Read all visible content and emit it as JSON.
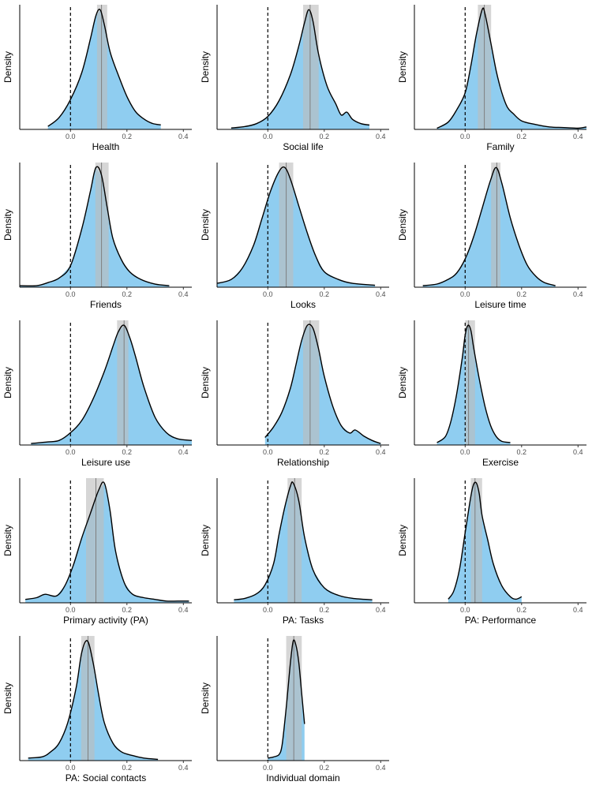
{
  "chart_data": {
    "type": "area",
    "title": "",
    "ylabel": "Density",
    "xlim": [
      -0.18,
      0.43
    ],
    "xticks": [
      0.0,
      0.2,
      0.4
    ],
    "xtick_labels": [
      "0.0",
      "0.2",
      "0.4"
    ],
    "reference_line_x": 0.0,
    "colors": {
      "fill": "#8fcdf0",
      "curve": "#000000",
      "interval": "#bdbdbd",
      "median_line": "#7f7f7f",
      "axis": "#000000"
    },
    "panels": [
      {
        "label": "Health",
        "median": 0.11,
        "interval": [
          0.094,
          0.13
        ],
        "x": [
          -0.08,
          -0.04,
          0.0,
          0.04,
          0.07,
          0.09,
          0.105,
          0.12,
          0.14,
          0.17,
          0.2,
          0.23,
          0.26,
          0.29,
          0.32
        ],
        "y": [
          0.02,
          0.08,
          0.2,
          0.38,
          0.6,
          0.76,
          0.8,
          0.7,
          0.52,
          0.36,
          0.22,
          0.12,
          0.07,
          0.04,
          0.03
        ]
      },
      {
        "label": "Social life",
        "median": 0.15,
        "interval": [
          0.125,
          0.18
        ],
        "x": [
          -0.13,
          -0.08,
          -0.04,
          0.0,
          0.04,
          0.08,
          0.11,
          0.13,
          0.145,
          0.16,
          0.18,
          0.21,
          0.24,
          0.26,
          0.28,
          0.3,
          0.33,
          0.36
        ],
        "y": [
          0.01,
          0.02,
          0.04,
          0.09,
          0.2,
          0.38,
          0.58,
          0.74,
          0.83,
          0.75,
          0.52,
          0.3,
          0.18,
          0.1,
          0.12,
          0.07,
          0.04,
          0.03
        ]
      },
      {
        "label": "Family",
        "median": 0.068,
        "interval": [
          0.045,
          0.092
        ],
        "x": [
          -0.1,
          -0.06,
          -0.03,
          0.0,
          0.02,
          0.04,
          0.06,
          0.07,
          0.09,
          0.11,
          0.13,
          0.15,
          0.17,
          0.2,
          0.25,
          0.3,
          0.35,
          0.4,
          0.43
        ],
        "y": [
          0.01,
          0.06,
          0.16,
          0.3,
          0.52,
          0.78,
          0.98,
          0.95,
          0.72,
          0.48,
          0.3,
          0.18,
          0.13,
          0.07,
          0.04,
          0.02,
          0.015,
          0.01,
          0.02
        ]
      },
      {
        "label": "Friends",
        "median": 0.11,
        "interval": [
          0.088,
          0.135
        ],
        "x": [
          -0.18,
          -0.12,
          -0.08,
          -0.04,
          0.0,
          0.04,
          0.07,
          0.09,
          0.11,
          0.13,
          0.15,
          0.18,
          0.21,
          0.25,
          0.3,
          0.35
        ],
        "y": [
          0.01,
          0.01,
          0.03,
          0.06,
          0.14,
          0.38,
          0.62,
          0.78,
          0.73,
          0.52,
          0.32,
          0.18,
          0.1,
          0.05,
          0.02,
          0.01
        ]
      },
      {
        "label": "Looks",
        "median": 0.065,
        "interval": [
          0.04,
          0.09
        ],
        "x": [
          -0.18,
          -0.13,
          -0.09,
          -0.05,
          -0.02,
          0.01,
          0.04,
          0.06,
          0.08,
          0.11,
          0.14,
          0.17,
          0.2,
          0.25,
          0.3,
          0.38
        ],
        "y": [
          0.02,
          0.04,
          0.1,
          0.22,
          0.36,
          0.5,
          0.6,
          0.62,
          0.56,
          0.42,
          0.28,
          0.16,
          0.08,
          0.04,
          0.02,
          0.01
        ]
      },
      {
        "label": "Leisure time",
        "median": 0.112,
        "interval": [
          0.092,
          0.125
        ],
        "x": [
          -0.15,
          -0.1,
          -0.06,
          -0.03,
          0.0,
          0.03,
          0.06,
          0.09,
          0.11,
          0.13,
          0.16,
          0.19,
          0.22,
          0.25,
          0.28,
          0.32
        ],
        "y": [
          0.01,
          0.02,
          0.05,
          0.09,
          0.18,
          0.32,
          0.5,
          0.68,
          0.76,
          0.66,
          0.44,
          0.27,
          0.14,
          0.07,
          0.03,
          0.01
        ]
      },
      {
        "label": "Leisure use",
        "median": 0.19,
        "interval": [
          0.165,
          0.205
        ],
        "x": [
          -0.14,
          -0.08,
          -0.04,
          0.0,
          0.04,
          0.08,
          0.12,
          0.15,
          0.17,
          0.19,
          0.21,
          0.23,
          0.26,
          0.3,
          0.34,
          0.38,
          0.43
        ],
        "y": [
          0.01,
          0.02,
          0.03,
          0.08,
          0.16,
          0.3,
          0.48,
          0.64,
          0.74,
          0.78,
          0.7,
          0.58,
          0.38,
          0.18,
          0.08,
          0.04,
          0.03
        ]
      },
      {
        "label": "Relationship",
        "median": 0.15,
        "interval": [
          0.125,
          0.182
        ],
        "x": [
          -0.01,
          0.02,
          0.05,
          0.08,
          0.1,
          0.12,
          0.14,
          0.16,
          0.18,
          0.2,
          0.23,
          0.26,
          0.29,
          0.31,
          0.34,
          0.37,
          0.4
        ],
        "y": [
          0.05,
          0.12,
          0.22,
          0.38,
          0.54,
          0.7,
          0.8,
          0.78,
          0.64,
          0.46,
          0.26,
          0.13,
          0.08,
          0.1,
          0.06,
          0.03,
          0.01
        ]
      },
      {
        "label": "Exercise",
        "median": 0.012,
        "interval": [
          0.0,
          0.035
        ],
        "x": [
          -0.1,
          -0.07,
          -0.05,
          -0.03,
          -0.01,
          0.0,
          0.01,
          0.02,
          0.03,
          0.05,
          0.07,
          0.09,
          0.11,
          0.13,
          0.16
        ],
        "y": [
          0.02,
          0.07,
          0.2,
          0.42,
          0.72,
          0.9,
          0.98,
          0.94,
          0.8,
          0.54,
          0.32,
          0.16,
          0.07,
          0.03,
          0.02
        ]
      },
      {
        "label": "Primary activity (PA)",
        "median": 0.09,
        "interval": [
          0.055,
          0.118
        ],
        "x": [
          -0.16,
          -0.12,
          -0.09,
          -0.05,
          -0.02,
          0.01,
          0.04,
          0.07,
          0.1,
          0.12,
          0.14,
          0.16,
          0.19,
          0.22,
          0.26,
          0.3,
          0.34,
          0.38,
          0.42
        ],
        "y": [
          0.02,
          0.03,
          0.05,
          0.04,
          0.1,
          0.22,
          0.38,
          0.52,
          0.66,
          0.7,
          0.54,
          0.3,
          0.12,
          0.05,
          0.03,
          0.02,
          0.01,
          0.01,
          0.01
        ]
      },
      {
        "label": "PA: Tasks",
        "median": 0.095,
        "interval": [
          0.07,
          0.12
        ],
        "x": [
          -0.12,
          -0.08,
          -0.04,
          -0.01,
          0.02,
          0.04,
          0.06,
          0.08,
          0.09,
          0.11,
          0.13,
          0.16,
          0.2,
          0.25,
          0.3,
          0.37
        ],
        "y": [
          0.02,
          0.03,
          0.06,
          0.12,
          0.26,
          0.46,
          0.64,
          0.78,
          0.8,
          0.68,
          0.44,
          0.22,
          0.1,
          0.05,
          0.03,
          0.02
        ]
      },
      {
        "label": "PA: Performance",
        "median": 0.035,
        "interval": [
          0.02,
          0.06
        ],
        "x": [
          -0.06,
          -0.04,
          -0.02,
          0.0,
          0.02,
          0.03,
          0.04,
          0.05,
          0.06,
          0.08,
          0.1,
          0.13,
          0.16,
          0.18,
          0.2
        ],
        "y": [
          0.03,
          0.1,
          0.28,
          0.58,
          0.88,
          0.98,
          0.99,
          0.9,
          0.72,
          0.52,
          0.32,
          0.14,
          0.05,
          0.03,
          0.05
        ]
      },
      {
        "label": "PA: Social contacts",
        "median": 0.062,
        "interval": [
          0.038,
          0.085
        ],
        "x": [
          -0.15,
          -0.1,
          -0.07,
          -0.04,
          -0.01,
          0.02,
          0.04,
          0.06,
          0.08,
          0.1,
          0.12,
          0.15,
          0.18,
          0.22,
          0.26,
          0.31
        ],
        "y": [
          0.02,
          0.03,
          0.07,
          0.14,
          0.3,
          0.58,
          0.86,
          0.95,
          0.78,
          0.52,
          0.3,
          0.14,
          0.07,
          0.04,
          0.02,
          0.01
        ]
      },
      {
        "label": "Individual domain",
        "median": 0.092,
        "interval": [
          0.065,
          0.12
        ],
        "x": [
          0.0,
          0.02,
          0.04,
          0.05,
          0.06,
          0.07,
          0.08,
          0.09,
          0.1,
          0.11,
          0.12,
          0.13
        ],
        "y": [
          0.02,
          0.03,
          0.05,
          0.12,
          0.32,
          0.55,
          0.8,
          0.98,
          0.94,
          0.8,
          0.55,
          0.3
        ]
      }
    ]
  }
}
